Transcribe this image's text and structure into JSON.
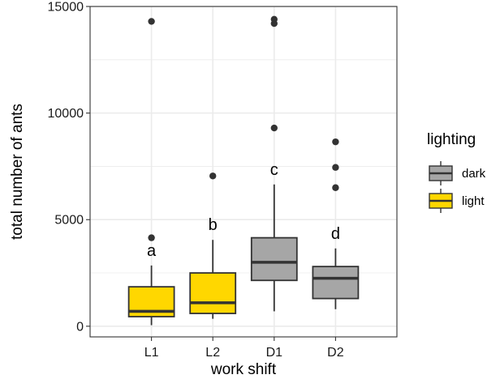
{
  "colors": {
    "dark": "#a6a6a6",
    "light": "#ffd700",
    "outline": "#333333",
    "grid": "#ebebeb",
    "point": "#333333"
  },
  "chart_data": {
    "type": "boxplot",
    "title": "",
    "xlabel": "work shift",
    "ylabel": "total number of ants",
    "ylim": [
      -500,
      15000
    ],
    "yticks": [
      0,
      5000,
      10000,
      15000
    ],
    "ytick_labels": [
      "0",
      "5000",
      "10000",
      "15000"
    ],
    "grid": true,
    "legend_position": "right",
    "legend_title": "lighting",
    "legend_entries": [
      {
        "label": "dark",
        "color": "#a6a6a6"
      },
      {
        "label": "light",
        "color": "#ffd700"
      }
    ],
    "categories": [
      "L1",
      "L2",
      "D1",
      "D2"
    ],
    "boxes": [
      {
        "category": "L1",
        "lighting": "light",
        "whisker_low": 50,
        "q1": 450,
        "median": 700,
        "q3": 1850,
        "whisker_high": 2850,
        "outliers": [
          4150,
          14300
        ],
        "letter": "a"
      },
      {
        "category": "L2",
        "lighting": "light",
        "whisker_low": 350,
        "q1": 600,
        "median": 1100,
        "q3": 2500,
        "whisker_high": 4050,
        "outliers": [
          7050
        ],
        "letter": "b"
      },
      {
        "category": "D1",
        "lighting": "dark",
        "whisker_low": 700,
        "q1": 2150,
        "median": 3000,
        "q3": 4150,
        "whisker_high": 6650,
        "outliers": [
          9300,
          14200,
          14400
        ],
        "letter": "c"
      },
      {
        "category": "D2",
        "lighting": "dark",
        "whisker_low": 800,
        "q1": 1300,
        "median": 2250,
        "q3": 2800,
        "whisker_high": 3650,
        "outliers": [
          6500,
          7450,
          8650
        ],
        "letter": "d"
      }
    ]
  }
}
